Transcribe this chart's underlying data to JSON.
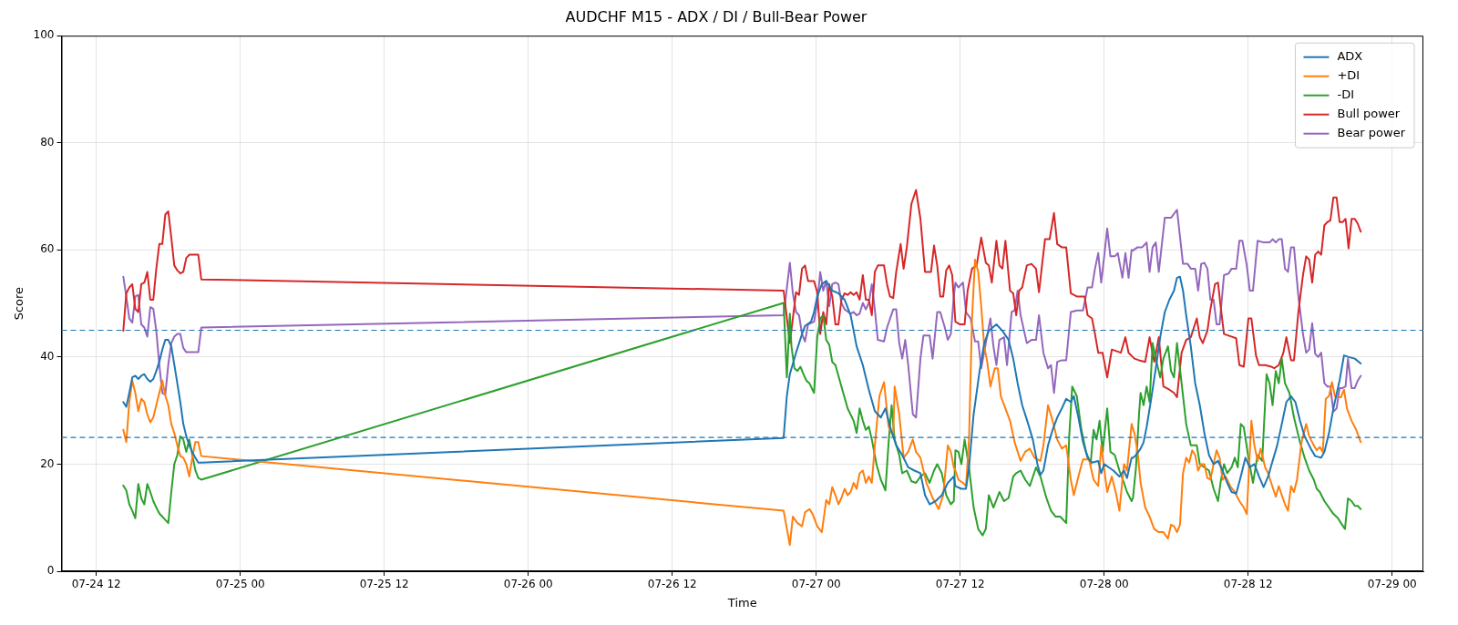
{
  "chart_data": {
    "type": "line",
    "title": "AUDCHF M15 - ADX / DI / Bull-Bear Power",
    "xlabel": "Time",
    "ylabel": "Score",
    "xlim": [
      "--07-24T09:06",
      "--07-29T02:36"
    ],
    "xticks": [
      {
        "value": "--07-24T12:00",
        "label": "07-24 12"
      },
      {
        "value": "--07-25T00:00",
        "label": "07-25 00"
      },
      {
        "value": "--07-25T12:00",
        "label": "07-25 12"
      },
      {
        "value": "--07-26T00:00",
        "label": "07-26 00"
      },
      {
        "value": "--07-26T12:00",
        "label": "07-26 12"
      },
      {
        "value": "--07-27T00:00",
        "label": "07-27 00"
      },
      {
        "value": "--07-27T12:00",
        "label": "07-27 12"
      },
      {
        "value": "--07-28T00:00",
        "label": "07-28 00"
      },
      {
        "value": "--07-28T12:00",
        "label": "07-28 12"
      },
      {
        "value": "--07-29T00:00",
        "label": "07-29 00"
      }
    ],
    "ylim": [
      0,
      100
    ],
    "yticks": [
      0,
      20,
      40,
      60,
      80,
      100
    ],
    "grid": true,
    "legend": "top right",
    "ref_lines": [
      {
        "axis": "y",
        "value": 45,
        "color": "#1f77b4",
        "line_style": "dashed"
      },
      {
        "axis": "y",
        "value": 25,
        "color": "#1f77b4",
        "line_style": "dashed"
      }
    ],
    "series": [
      {
        "name": "ADX",
        "color": "#1f77b4",
        "x": [
          "--07-24T14:15",
          "--07-24T14:30",
          "--07-24T14:45",
          "--07-24T15:00",
          "--07-24T15:15",
          "--07-24T15:30",
          "--07-24T15:45",
          "--07-24T16:00",
          "--07-24T16:15",
          "--07-24T16:30",
          "--07-24T16:45",
          "--07-24T17:00",
          "--07-24T17:15",
          "--07-24T17:30",
          "--07-24T17:45",
          "--07-24T18:00",
          "--07-24T18:15",
          "--07-24T18:30",
          "--07-24T18:45",
          "--07-24T19:00",
          "--07-24T19:15",
          "--07-24T19:30",
          "--07-24T19:45",
          "--07-24T20:00",
          "--07-24T20:15",
          "--07-24T20:30",
          "--07-24T20:45",
          "--07-26T21:17",
          "--07-26T21:33",
          "--07-26T21:48",
          "--07-26T22:19",
          "--07-26T22:49",
          "--07-26T23:04",
          "--07-26T23:34",
          "--07-26T23:49",
          "--07-27T00:05",
          "--07-27T00:28",
          "--07-27T00:50",
          "--07-27T01:20",
          "--07-27T01:51",
          "--07-27T02:22",
          "--07-27T02:52",
          "--07-27T03:22",
          "--07-27T03:53",
          "--07-27T04:23",
          "--07-27T04:53",
          "--07-27T05:23",
          "--07-27T05:46",
          "--07-27T06:09",
          "--07-27T06:40",
          "--07-27T07:10",
          "--07-27T07:40",
          "--07-27T08:11",
          "--07-27T08:41",
          "--07-27T09:04",
          "--07-27T09:27",
          "--07-27T09:57",
          "--07-27T10:28",
          "--07-27T10:58",
          "--07-27T11:28",
          "--07-27T11:36",
          "--07-27T12:06",
          "--07-27T12:29",
          "--07-27T12:44",
          "--07-27T13:07",
          "--07-27T13:37",
          "--07-27T14:00",
          "--07-27T14:23",
          "--07-27T15:01",
          "--07-27T15:31",
          "--07-27T16:02",
          "--07-27T16:25",
          "--07-27T16:47",
          "--07-27T17:10",
          "--07-27T17:40",
          "--07-27T18:03",
          "--07-27T18:26",
          "--07-27T18:41",
          "--07-27T18:56",
          "--07-27T19:19",
          "--07-27T19:42",
          "--07-27T20:05",
          "--07-27T20:28",
          "--07-27T20:50",
          "--07-27T21:13",
          "--07-27T21:28",
          "--07-27T21:51",
          "--07-27T22:14",
          "--07-27T22:37",
          "--07-27T22:59",
          "--07-27T23:30",
          "--07-27T23:45",
          "--07-28T00:00",
          "--07-28T00:23",
          "--07-28T00:46",
          "--07-28T01:16",
          "--07-28T01:39",
          "--07-28T01:54",
          "--07-28T02:17",
          "--07-28T02:24",
          "--07-28T02:39",
          "--07-28T03:02",
          "--07-28T03:17",
          "--07-28T03:32",
          "--07-28T03:55",
          "--07-28T04:18",
          "--07-28T04:40",
          "--07-28T05:03",
          "--07-28T05:26",
          "--07-28T05:49",
          "--07-28T06:04",
          "--07-28T06:19",
          "--07-28T06:34",
          "--07-28T06:50",
          "--07-28T07:13",
          "--07-28T07:35",
          "--07-28T07:58",
          "--07-28T08:21",
          "--07-28T08:44",
          "--07-28T09:07",
          "--07-28T09:29",
          "--07-28T09:52",
          "--07-28T10:15",
          "--07-28T10:37",
          "--07-28T11:00",
          "--07-28T11:23",
          "--07-28T11:46",
          "--07-28T12:08",
          "--07-28T12:31",
          "--07-28T12:54",
          "--07-28T13:17",
          "--07-28T13:40",
          "--07-28T14:02",
          "--07-28T14:25",
          "--07-28T14:48",
          "--07-28T15:11",
          "--07-28T15:34",
          "--07-28T15:56",
          "--07-28T16:19",
          "--07-28T16:42",
          "--07-28T17:05",
          "--07-28T17:13",
          "--07-28T17:35",
          "--07-28T18:05",
          "--07-28T18:21",
          "--07-28T18:44",
          "--07-28T19:06",
          "--07-28T19:37",
          "--07-28T19:59",
          "--07-28T20:22",
          "--07-28T20:53",
          "--07-28T21:23"
        ],
        "values": [
          31.6,
          30.7,
          33.3,
          36.2,
          36.5,
          35.9,
          36.5,
          36.8,
          35.9,
          35.4,
          35.9,
          37.4,
          39.1,
          41.4,
          43.2,
          43.2,
          42.0,
          38.6,
          35.1,
          31.6,
          27.5,
          25.2,
          23.5,
          22.3,
          21.2,
          20.3,
          20.3,
          24.9,
          32.7,
          36.8,
          40.8,
          44.3,
          45.8,
          46.6,
          48.4,
          51.3,
          53.6,
          54.2,
          52.4,
          51.9,
          50.7,
          47.8,
          42.0,
          38.5,
          33.9,
          29.9,
          28.7,
          30.4,
          27.0,
          23.5,
          21.7,
          19.4,
          18.8,
          18.3,
          14.2,
          12.5,
          13.1,
          14.2,
          16.5,
          17.7,
          15.9,
          15.4,
          15.4,
          19.4,
          29.3,
          37.4,
          42.6,
          44.9,
          46.1,
          44.9,
          43.2,
          39.7,
          35.1,
          31.0,
          27.5,
          24.6,
          20.0,
          18.0,
          18.8,
          23.5,
          26.4,
          28.7,
          30.4,
          32.2,
          31.6,
          32.7,
          28.7,
          24.1,
          21.2,
          20.3,
          20.6,
          18.3,
          20.0,
          19.4,
          18.8,
          17.7,
          18.8,
          17.4,
          21.2,
          21.2,
          21.7,
          22.9,
          24.1,
          26.9,
          32.2,
          37.9,
          43.7,
          48.4,
          50.7,
          52.4,
          54.8,
          55.0,
          52.4,
          47.8,
          42.0,
          35.1,
          31.0,
          25.8,
          21.7,
          20.0,
          20.6,
          18.8,
          16.5,
          14.8,
          14.5,
          17.7,
          21.2,
          19.4,
          20.0,
          17.7,
          15.7,
          17.7,
          20.6,
          23.5,
          27.5,
          31.6,
          32.7,
          31.6,
          28.1,
          25.2,
          23.5,
          22.9,
          21.5,
          21.2,
          22.3,
          25.8,
          30.4,
          35.6,
          40.3,
          40.0,
          39.7,
          38.8
        ]
      },
      {
        "name": "+DI",
        "color": "#ff7f0e",
        "x": [
          "--07-24T14:15",
          "--07-24T14:30",
          "--07-24T14:45",
          "--07-24T15:00",
          "--07-24T15:15",
          "--07-24T15:30",
          "--07-24T15:45",
          "--07-24T16:00",
          "--07-24T16:15",
          "--07-24T16:30",
          "--07-24T16:45",
          "--07-24T17:00",
          "--07-24T17:15",
          "--07-24T17:30",
          "--07-24T17:45",
          "--07-24T18:00",
          "--07-24T18:15",
          "--07-24T18:30",
          "--07-24T18:45",
          "--07-24T19:00",
          "--07-24T19:15",
          "--07-24T19:30",
          "--07-24T19:45",
          "--07-24T20:00",
          "--07-24T20:15",
          "--07-24T20:30",
          "--07-24T20:45",
          "--07-26T21:17",
          "--07-26T21:48",
          "--07-26T22:03",
          "--07-26T22:26",
          "--07-26T22:49",
          "--07-26T23:04",
          "--07-26T23:26",
          "--07-26T23:42",
          "--07-27T00:05",
          "--07-27T00:28",
          "--07-27T00:50",
          "--07-27T01:05",
          "--07-27T01:20",
          "--07-27T01:36",
          "--07-27T01:51",
          "--07-27T02:06",
          "--07-27T02:22",
          "--07-27T02:37",
          "--07-27T02:52",
          "--07-27T03:07",
          "--07-27T03:22",
          "--07-27T03:37",
          "--07-27T03:53",
          "--07-27T04:08",
          "--07-27T04:23",
          "--07-27T04:38",
          "--07-27T04:53",
          "--07-27T05:16",
          "--07-27T05:39",
          "--07-27T06:02",
          "--07-27T06:25",
          "--07-27T06:32",
          "--07-27T06:55",
          "--07-27T07:17",
          "--07-27T07:40",
          "--07-27T08:03",
          "--07-27T08:19",
          "--07-27T08:41",
          "--07-27T09:11",
          "--07-27T09:42",
          "--07-27T10:12",
          "--07-27T10:35",
          "--07-27T10:58",
          "--07-27T11:13",
          "--07-27T11:28",
          "--07-27T11:36",
          "--07-27T11:51",
          "--07-27T12:14",
          "--07-27T12:29",
          "--07-27T12:44",
          "--07-27T12:59",
          "--07-27T13:14",
          "--07-27T13:30",
          "--07-27T13:45",
          "--07-27T14:00",
          "--07-27T14:15",
          "--07-27T14:31",
          "--07-27T14:53",
          "--07-27T15:08",
          "--07-27T15:23",
          "--07-27T15:46",
          "--07-27T16:09",
          "--07-27T16:32",
          "--07-27T17:02",
          "--07-27T17:25",
          "--07-27T17:48",
          "--07-27T18:11",
          "--07-27T18:41",
          "--07-27T18:56",
          "--07-27T19:19",
          "--07-27T19:42",
          "--07-27T20:05",
          "--07-27T20:28",
          "--07-27T20:50",
          "--07-27T21:13",
          "--07-27T21:28",
          "--07-27T21:51",
          "--07-27T22:14",
          "--07-27T22:44",
          "--07-27T23:07",
          "--07-27T23:30",
          "--07-27T23:45",
          "--07-28T00:15",
          "--07-28T00:38",
          "--07-28T01:01",
          "--07-28T01:16",
          "--07-28T01:39",
          "--07-28T01:54",
          "--07-28T02:17",
          "--07-28T02:31",
          "--07-28T02:47",
          "--07-28T03:02",
          "--07-28T03:25",
          "--07-28T03:47",
          "--07-28T04:10",
          "--07-28T04:33",
          "--07-28T04:56",
          "--07-28T05:19",
          "--07-28T05:34",
          "--07-28T05:49",
          "--07-28T06:04",
          "--07-28T06:19",
          "--07-28T06:34",
          "--07-28T06:50",
          "--07-28T07:05",
          "--07-28T07:20",
          "--07-28T07:35",
          "--07-28T07:50",
          "--07-28T08:05",
          "--07-28T08:21",
          "--07-28T08:36",
          "--07-28T08:51",
          "--07-28T09:07",
          "--07-28T09:22",
          "--07-28T09:37",
          "--07-28T09:52",
          "--07-28T10:07",
          "--07-28T10:30",
          "--07-28T10:53",
          "--07-28T11:16",
          "--07-28T11:38",
          "--07-28T11:53",
          "--07-28T12:16",
          "--07-28T12:31",
          "--07-28T12:47",
          "--07-28T13:02",
          "--07-28T13:25",
          "--07-28T13:40",
          "--07-28T13:55",
          "--07-28T14:18",
          "--07-28T14:33",
          "--07-28T14:48",
          "--07-28T15:04",
          "--07-28T15:19",
          "--07-28T15:34",
          "--07-28T15:49",
          "--07-28T16:04",
          "--07-28T16:27",
          "--07-28T16:50",
          "--07-28T17:05",
          "--07-28T17:28",
          "--07-28T17:43",
          "--07-28T17:58",
          "--07-28T18:13",
          "--07-28T18:28",
          "--07-28T18:44",
          "--07-28T18:59",
          "--07-28T19:14",
          "--07-28T19:29",
          "--07-28T19:44",
          "--07-28T19:59",
          "--07-28T20:14",
          "--07-28T20:37",
          "--07-28T21:00",
          "--07-28T21:23"
        ],
        "values": [
          26.4,
          24.1,
          31.6,
          35.6,
          33.3,
          29.9,
          32.2,
          31.6,
          29.3,
          27.8,
          28.7,
          31.0,
          33.3,
          35.6,
          32.8,
          31.0,
          27.5,
          25.8,
          23.5,
          21.5,
          21.2,
          20.0,
          17.7,
          21.2,
          24.1,
          24.1,
          21.5,
          11.3,
          4.9,
          10.2,
          9.0,
          8.4,
          11.0,
          11.6,
          10.7,
          8.4,
          7.3,
          13.3,
          12.5,
          15.7,
          14.2,
          12.5,
          13.7,
          15.4,
          14.2,
          14.8,
          16.5,
          15.4,
          18.3,
          18.8,
          16.5,
          17.7,
          16.5,
          23.5,
          32.7,
          35.3,
          27.0,
          25.2,
          34.5,
          29.3,
          21.2,
          22.3,
          24.6,
          22.3,
          21.2,
          16.5,
          13.7,
          11.6,
          14.2,
          23.5,
          22.3,
          19.4,
          18.8,
          17.1,
          16.5,
          15.9,
          24.6,
          47.2,
          58.2,
          55.9,
          49.5,
          42.0,
          39.1,
          34.5,
          37.9,
          37.9,
          32.7,
          30.4,
          28.1,
          24.1,
          20.6,
          22.3,
          22.9,
          21.2,
          20.6,
          23.5,
          31.0,
          28.1,
          24.6,
          22.9,
          23.5,
          17.1,
          14.2,
          17.7,
          20.9,
          20.9,
          17.1,
          15.9,
          23.5,
          14.8,
          17.7,
          14.2,
          11.3,
          20.0,
          18.8,
          27.5,
          25.8,
          22.3,
          16.5,
          11.9,
          10.2,
          7.9,
          7.3,
          7.3,
          6.1,
          8.7,
          8.4,
          7.3,
          8.7,
          18.3,
          21.2,
          20.3,
          22.6,
          21.7,
          18.8,
          20.0,
          20.0,
          17.4,
          17.1,
          20.0,
          22.6,
          21.2,
          17.1,
          17.7,
          15.9,
          14.8,
          13.1,
          11.9,
          10.7,
          28.1,
          23.5,
          20.6,
          22.9,
          19.4,
          18.3,
          16.5,
          13.9,
          15.9,
          14.2,
          12.5,
          11.3,
          15.9,
          14.8,
          17.1,
          24.1,
          27.5,
          25.2,
          23.5,
          22.6,
          23.2,
          22.3,
          32.2,
          32.7,
          35.3,
          32.7,
          32.5,
          32.5,
          33.9,
          30.4,
          28.1,
          26.4,
          24.1
        ]
      },
      {
        "name": "-DI",
        "color": "#2ca02c",
        "x": [
          "--07-24T14:15",
          "--07-24T14:30",
          "--07-24T14:45",
          "--07-24T15:00",
          "--07-24T15:15",
          "--07-24T15:30",
          "--07-24T15:45",
          "--07-24T16:00",
          "--07-24T16:15",
          "--07-24T16:30",
          "--07-24T16:45",
          "--07-24T17:00",
          "--07-24T17:15",
          "--07-24T17:30",
          "--07-24T17:45",
          "--07-24T18:00",
          "--07-24T18:15",
          "--07-24T18:30",
          "--07-24T18:45",
          "--07-24T19:00",
          "--07-24T19:15",
          "--07-24T19:30",
          "--07-24T19:45",
          "--07-24T20:00",
          "--07-24T20:15",
          "--07-24T20:30",
          "--07-24T20:45",
          "--07-26T21:17",
          "--07-26T21:33",
          "--07-26T21:48",
          "--07-26T21:56",
          "--07-26T22:11",
          "--07-26T22:26",
          "--07-26T22:41",
          "--07-26T22:56",
          "--07-26T23:11",
          "--07-26T23:26",
          "--07-26T23:49",
          "--07-27T00:05",
          "--07-27T00:20",
          "--07-27T00:35",
          "--07-27T00:50",
          "--07-27T01:05",
          "--07-27T01:20",
          "--07-27T01:36",
          "--07-27T02:06",
          "--07-27T02:37",
          "--07-27T03:07",
          "--07-27T03:22",
          "--07-27T03:37",
          "--07-27T03:53",
          "--07-27T04:08",
          "--07-27T04:23",
          "--07-27T04:38",
          "--07-27T05:01",
          "--07-27T05:23",
          "--07-27T05:46",
          "--07-27T06:02",
          "--07-27T06:17",
          "--07-27T06:32",
          "--07-27T06:55",
          "--07-27T07:10",
          "--07-27T07:33",
          "--07-27T07:56",
          "--07-27T08:19",
          "--07-27T08:41",
          "--07-27T09:04",
          "--07-27T09:27",
          "--07-27T09:49",
          "--07-27T10:05",
          "--07-27T10:28",
          "--07-27T10:50",
          "--07-27T11:13",
          "--07-27T11:28",
          "--07-27T11:36",
          "--07-27T11:51",
          "--07-27T12:06",
          "--07-27T12:22",
          "--07-27T12:44",
          "--07-27T13:07",
          "--07-27T13:30",
          "--07-27T13:52",
          "--07-27T14:08",
          "--07-27T14:23",
          "--07-27T14:46",
          "--07-27T15:16",
          "--07-27T15:39",
          "--07-27T16:02",
          "--07-27T16:25",
          "--07-27T16:40",
          "--07-27T17:02",
          "--07-27T17:25",
          "--07-27T17:48",
          "--07-27T18:19",
          "--07-27T18:41",
          "--07-27T19:11",
          "--07-27T19:34",
          "--07-27T19:57",
          "--07-27T20:20",
          "--07-27T20:50",
          "--07-27T21:05",
          "--07-27T21:20",
          "--07-27T21:43",
          "--07-27T22:06",
          "--07-27T22:29",
          "--07-27T22:52",
          "--07-27T23:07",
          "--07-27T23:22",
          "--07-27T23:37",
          "--07-27T23:52",
          "--07-28T00:15",
          "--07-28T00:31",
          "--07-28T00:53",
          "--07-28T01:16",
          "--07-28T01:39",
          "--07-28T01:54",
          "--07-28T02:17",
          "--07-28T02:24",
          "--07-28T02:39",
          "--07-28T02:54",
          "--07-28T03:02",
          "--07-28T03:17",
          "--07-28T03:32",
          "--07-28T03:47",
          "--07-28T04:02",
          "--07-28T04:18",
          "--07-28T04:40",
          "--07-28T04:56",
          "--07-28T05:19",
          "--07-28T05:34",
          "--07-28T05:49",
          "--07-28T06:04",
          "--07-28T06:27",
          "--07-28T06:50",
          "--07-28T07:13",
          "--07-28T07:43",
          "--07-28T07:58",
          "--07-28T08:21",
          "--07-28T08:44",
          "--07-28T09:07",
          "--07-28T09:29",
          "--07-28T09:44",
          "--07-28T09:59",
          "--07-28T10:15",
          "--07-28T10:37",
          "--07-28T10:53",
          "--07-28T11:08",
          "--07-28T11:23",
          "--07-28T11:38",
          "--07-28T12:01",
          "--07-28T12:24",
          "--07-28T12:47",
          "--07-28T13:10",
          "--07-28T13:32",
          "--07-28T13:47",
          "--07-28T14:02",
          "--07-28T14:18",
          "--07-28T14:33",
          "--07-28T14:48",
          "--07-28T15:04",
          "--07-28T15:26",
          "--07-28T15:49",
          "--07-28T16:19",
          "--07-28T16:42",
          "--07-28T17:05",
          "--07-28T17:28",
          "--07-28T17:43",
          "--07-28T17:58",
          "--07-28T18:21",
          "--07-28T18:44",
          "--07-28T19:06",
          "--07-28T19:29",
          "--07-28T19:44",
          "--07-28T20:04",
          "--07-28T20:19",
          "--07-28T20:37",
          "--07-28T20:53",
          "--07-28T21:08",
          "--07-28T21:23"
        ],
        "values": [
          16.0,
          15.1,
          12.5,
          11.3,
          9.9,
          16.3,
          13.6,
          12.5,
          16.3,
          14.8,
          13.1,
          11.9,
          10.8,
          10.2,
          9.6,
          9.0,
          14.8,
          20.0,
          21.7,
          25.2,
          24.6,
          22.3,
          24.6,
          21.7,
          18.9,
          17.4,
          17.1,
          50.1,
          36.2,
          48.1,
          42.0,
          37.9,
          37.4,
          38.2,
          36.8,
          35.6,
          35.1,
          33.3,
          43.7,
          47.2,
          47.8,
          43.2,
          42.3,
          39.1,
          38.5,
          34.5,
          30.4,
          28.1,
          25.8,
          30.4,
          28.1,
          26.4,
          27.0,
          24.6,
          20.0,
          17.1,
          15.1,
          24.1,
          31.0,
          24.6,
          21.7,
          18.3,
          18.8,
          16.8,
          16.5,
          17.7,
          18.3,
          16.5,
          18.8,
          20.0,
          18.3,
          14.2,
          12.5,
          13.1,
          22.6,
          22.3,
          20.0,
          24.6,
          19.4,
          11.9,
          7.9,
          6.7,
          7.9,
          14.2,
          11.9,
          14.8,
          13.1,
          13.7,
          17.7,
          18.3,
          18.8,
          17.1,
          15.9,
          19.4,
          17.7,
          13.7,
          11.3,
          10.2,
          10.2,
          9.0,
          25.2,
          34.5,
          32.7,
          26.4,
          22.3,
          20.0,
          26.4,
          24.6,
          28.1,
          22.3,
          30.4,
          22.3,
          21.7,
          18.8,
          16.5,
          14.8,
          13.1,
          13.7,
          19.4,
          29.3,
          33.3,
          31.0,
          34.5,
          31.6,
          42.6,
          39.7,
          36.2,
          39.7,
          42.0,
          37.4,
          36.2,
          42.6,
          35.1,
          27.5,
          23.5,
          23.5,
          20.0,
          19.4,
          18.8,
          15.4,
          13.1,
          17.1,
          20.0,
          18.3,
          19.4,
          21.2,
          19.4,
          27.5,
          26.9,
          21.2,
          16.5,
          21.7,
          20.6,
          36.8,
          35.1,
          31.0,
          37.4,
          35.1,
          39.7,
          35.1,
          33.3,
          28.7,
          24.1,
          21.2,
          18.8,
          17.1,
          15.4,
          14.8,
          13.1,
          11.9,
          10.7,
          9.9,
          9.0,
          7.9,
          13.6,
          13.1,
          12.2,
          12.2,
          11.6
        ]
      },
      {
        "name": "Bull power",
        "color": "#d62728",
        "x": [
          "--07-24T14:15",
          "--07-24T14:30",
          "--07-24T14:45",
          "--07-24T15:00",
          "--07-24T15:15",
          "--07-24T15:30",
          "--07-24T15:45",
          "--07-24T16:00",
          "--07-24T16:15",
          "--07-24T16:30",
          "--07-24T16:45",
          "--07-24T17:00",
          "--07-24T17:15",
          "--07-24T17:30",
          "--07-24T17:45",
          "--07-24T18:00",
          "--07-24T18:15",
          "--07-24T18:30",
          "--07-24T18:45",
          "--07-24T19:00",
          "--07-24T19:15",
          "--07-24T19:30",
          "--07-24T19:45",
          "--07-24T20:00",
          "--07-24T20:15",
          "--07-24T20:30",
          "--07-24T20:45",
          "--07-26T21:17",
          "--07-26T21:48",
          "--07-26T22:19",
          "--07-26T22:34",
          "--07-26T22:49",
          "--07-26T23:04",
          "--07-26T23:19",
          "--07-26T23:49",
          "--07-27T00:05",
          "--07-27T00:20",
          "--07-27T00:35",
          "--07-27T00:50",
          "--07-27T01:05",
          "--07-27T01:20",
          "--07-27T01:36",
          "--07-27T01:51",
          "--07-27T02:06",
          "--07-27T02:22",
          "--07-27T02:37",
          "--07-27T02:52",
          "--07-27T03:07",
          "--07-27T03:22",
          "--07-27T03:37",
          "--07-27T03:53",
          "--07-27T04:08",
          "--07-27T04:23",
          "--07-27T04:38",
          "--07-27T04:53",
          "--07-27T05:08",
          "--07-27T05:39",
          "--07-27T05:54",
          "--07-27T06:09",
          "--07-27T06:25",
          "--07-27T06:40",
          "--07-27T07:02",
          "--07-27T07:17",
          "--07-27T07:33",
          "--07-27T07:56",
          "--07-27T08:19",
          "--07-27T08:41",
          "--07-27T09:04",
          "--07-27T09:34",
          "--07-27T09:49",
          "--07-27T10:05",
          "--07-27T10:20",
          "--07-27T10:35",
          "--07-27T10:50",
          "--07-27T11:05",
          "--07-27T11:20",
          "--07-27T11:36",
          "--07-27T11:59",
          "--07-27T12:22",
          "--07-27T12:37",
          "--07-27T12:59",
          "--07-27T13:22",
          "--07-27T13:45",
          "--07-27T14:08",
          "--07-27T14:23",
          "--07-27T14:38",
          "--07-27T15:01",
          "--07-27T15:16",
          "--07-27T15:31",
          "--07-27T15:46",
          "--07-27T16:09",
          "--07-27T16:25",
          "--07-27T16:40",
          "--07-27T16:55",
          "--07-27T17:10",
          "--07-27T17:33",
          "--07-27T17:56",
          "--07-27T18:19",
          "--07-27T18:34",
          "--07-27T18:49",
          "--07-27T19:04",
          "--07-27T19:27",
          "--07-27T19:49",
          "--07-27T20:05",
          "--07-27T20:28",
          "--07-27T20:50",
          "--07-27T21:13",
          "--07-27T21:43",
          "--07-27T22:22",
          "--07-27T22:37",
          "--07-27T22:59",
          "--07-27T23:14",
          "--07-27T23:30",
          "--07-27T23:52",
          "--07-28T00:15",
          "--07-28T00:38",
          "--07-28T01:01",
          "--07-28T01:23",
          "--07-28T01:46",
          "--07-28T02:02",
          "--07-28T02:31",
          "--07-28T02:54",
          "--07-28T03:25",
          "--07-28T03:47",
          "--07-28T04:10",
          "--07-28T04:33",
          "--07-28T04:56",
          "--07-28T05:26",
          "--07-28T05:49",
          "--07-28T06:04",
          "--07-28T06:27",
          "--07-28T06:50",
          "--07-28T07:13",
          "--07-28T07:43",
          "--07-28T07:58",
          "--07-28T08:13",
          "--07-28T08:36",
          "--07-28T08:51",
          "--07-28T09:14",
          "--07-28T09:29",
          "--07-28T09:44",
          "--07-28T09:59",
          "--07-28T10:22",
          "--07-28T11:00",
          "--07-28T11:16",
          "--07-28T11:38",
          "--07-28T12:01",
          "--07-28T12:16",
          "--07-28T12:39",
          "--07-28T12:54",
          "--07-28T13:25",
          "--07-28T13:55",
          "--07-28T14:10",
          "--07-28T14:33",
          "--07-28T14:56",
          "--07-28T15:11",
          "--07-28T15:34",
          "--07-28T15:49",
          "--07-28T16:11",
          "--07-28T16:34",
          "--07-28T16:50",
          "--07-28T17:05",
          "--07-28T17:20",
          "--07-28T17:35",
          "--07-28T17:50",
          "--07-28T18:05",
          "--07-28T18:21",
          "--07-28T18:36",
          "--07-28T18:51",
          "--07-28T19:06",
          "--07-28T19:22",
          "--07-28T19:37",
          "--07-28T19:52",
          "--07-28T20:07",
          "--07-28T20:22",
          "--07-28T20:37",
          "--07-28T20:53",
          "--07-28T21:08",
          "--07-28T21:23"
        ],
        "values": [
          44.9,
          51.9,
          53.0,
          53.6,
          49.0,
          48.4,
          53.6,
          53.9,
          55.9,
          50.7,
          50.7,
          56.5,
          61.1,
          61.1,
          66.6,
          67.2,
          62.3,
          57.1,
          56.2,
          55.6,
          55.9,
          58.5,
          59.1,
          59.1,
          59.1,
          59.1,
          54.5,
          52.4,
          42.6,
          52.1,
          51.6,
          56.5,
          57.1,
          54.2,
          54.2,
          52.1,
          44.3,
          48.4,
          46.1,
          53.6,
          51.3,
          46.1,
          46.1,
          50.7,
          51.9,
          51.6,
          52.1,
          51.6,
          52.1,
          50.7,
          55.3,
          50.7,
          50.7,
          47.8,
          55.9,
          57.1,
          57.1,
          53.6,
          51.3,
          51.0,
          55.9,
          61.1,
          56.5,
          60.5,
          68.6,
          71.2,
          65.8,
          55.9,
          55.9,
          60.8,
          57.1,
          51.3,
          51.3,
          56.2,
          57.1,
          55.3,
          46.6,
          46.1,
          46.1,
          52.4,
          56.5,
          57.1,
          62.3,
          57.6,
          57.1,
          53.9,
          61.7,
          57.1,
          56.5,
          61.7,
          52.4,
          51.9,
          47.8,
          52.4,
          53.0,
          57.1,
          57.4,
          56.5,
          52.1,
          57.1,
          62.0,
          62.0,
          66.9,
          61.1,
          60.5,
          60.5,
          51.9,
          51.3,
          51.3,
          47.8,
          47.2,
          44.3,
          40.8,
          40.8,
          36.2,
          41.4,
          41.1,
          40.8,
          43.7,
          40.8,
          39.7,
          39.4,
          39.1,
          43.7,
          39.1,
          43.7,
          34.5,
          33.9,
          33.3,
          32.5,
          40.8,
          43.2,
          43.7,
          47.2,
          43.7,
          42.6,
          44.9,
          48.9,
          53.6,
          53.9,
          48.9,
          44.3,
          44.0,
          43.5,
          38.5,
          38.2,
          47.2,
          47.2,
          40.3,
          38.5,
          38.5,
          38.2,
          37.9,
          38.5,
          40.8,
          43.7,
          39.4,
          39.4,
          48.4,
          55.3,
          58.8,
          58.2,
          53.9,
          59.1,
          59.7,
          59.1,
          64.6,
          65.2,
          65.5,
          69.8,
          69.8,
          65.2,
          65.2,
          65.8,
          60.3,
          65.8,
          65.8,
          64.9,
          63.4
        ]
      },
      {
        "name": "Bear power",
        "color": "#9467bd",
        "x": [
          "--07-24T14:15",
          "--07-24T14:30",
          "--07-24T14:45",
          "--07-24T15:00",
          "--07-24T15:15",
          "--07-24T15:30",
          "--07-24T15:45",
          "--07-24T16:00",
          "--07-24T16:15",
          "--07-24T16:30",
          "--07-24T16:45",
          "--07-24T17:00",
          "--07-24T17:15",
          "--07-24T17:30",
          "--07-24T17:45",
          "--07-24T18:00",
          "--07-24T18:15",
          "--07-24T18:30",
          "--07-24T18:45",
          "--07-24T19:00",
          "--07-24T19:15",
          "--07-24T19:30",
          "--07-24T19:45",
          "--07-24T20:00",
          "--07-24T20:15",
          "--07-24T20:30",
          "--07-24T20:45",
          "--07-26T21:17",
          "--07-26T21:48",
          "--07-26T22:03",
          "--07-26T22:19",
          "--07-26T22:34",
          "--07-26T22:49",
          "--07-26T23:04",
          "--07-26T23:19",
          "--07-26T23:49",
          "--07-27T00:05",
          "--07-27T00:20",
          "--07-27T00:35",
          "--07-27T00:50",
          "--07-27T01:05",
          "--07-27T01:20",
          "--07-27T01:36",
          "--07-27T01:51",
          "--07-27T02:06",
          "--07-27T02:22",
          "--07-27T02:52",
          "--07-27T03:07",
          "--07-27T03:22",
          "--07-27T03:37",
          "--07-27T03:53",
          "--07-27T04:08",
          "--07-27T04:23",
          "--07-27T04:38",
          "--07-27T04:53",
          "--07-27T05:08",
          "--07-27T05:39",
          "--07-27T05:54",
          "--07-27T06:25",
          "--07-27T06:40",
          "--07-27T06:55",
          "--07-27T07:10",
          "--07-27T07:25",
          "--07-27T07:40",
          "--07-27T08:03",
          "--07-27T08:19",
          "--07-27T08:41",
          "--07-27T08:56",
          "--07-27T09:27",
          "--07-27T09:42",
          "--07-27T10:05",
          "--07-27T10:20",
          "--07-27T10:43",
          "--07-27T10:58",
          "--07-27T11:13",
          "--07-27T11:28",
          "--07-27T11:36",
          "--07-27T11:51",
          "--07-27T12:14",
          "--07-27T12:29",
          "--07-27T12:52",
          "--07-27T13:14",
          "--07-27T13:30",
          "--07-27T13:45",
          "--07-27T14:08",
          "--07-27T14:31",
          "--07-27T14:46",
          "--07-27T15:01",
          "--07-27T15:16",
          "--07-27T15:39",
          "--07-27T15:54",
          "--07-27T16:17",
          "--07-27T16:32",
          "--07-27T16:47",
          "--07-27T17:02",
          "--07-27T17:33",
          "--07-27T17:56",
          "--07-27T18:19",
          "--07-27T18:34",
          "--07-27T18:56",
          "--07-27T19:19",
          "--07-27T19:34",
          "--07-27T19:49",
          "--07-27T20:05",
          "--07-27T20:28",
          "--07-27T20:50",
          "--07-27T21:13",
          "--07-27T21:43",
          "--07-27T22:14",
          "--07-27T22:37",
          "--07-27T22:59",
          "--07-27T23:14",
          "--07-27T23:30",
          "--07-27T23:45",
          "--07-28T00:00",
          "--07-28T00:15",
          "--07-28T00:31",
          "--07-28T00:53",
          "--07-28T01:08",
          "--07-28T01:31",
          "--07-28T01:46",
          "--07-28T02:02",
          "--07-28T02:17",
          "--07-28T02:24",
          "--07-28T02:47",
          "--07-28T03:10",
          "--07-28T03:32",
          "--07-28T03:47",
          "--07-28T04:02",
          "--07-28T04:18",
          "--07-28T04:33",
          "--07-28T05:03",
          "--07-28T05:34",
          "--07-28T06:04",
          "--07-28T06:34",
          "--07-28T06:57",
          "--07-28T07:13",
          "--07-28T07:35",
          "--07-28T07:50",
          "--07-28T08:05",
          "--07-28T08:21",
          "--07-28T08:36",
          "--07-28T08:51",
          "--07-28T09:07",
          "--07-28T09:22",
          "--07-28T09:37",
          "--07-28T09:59",
          "--07-28T10:22",
          "--07-28T10:37",
          "--07-28T11:00",
          "--07-28T11:16",
          "--07-28T11:31",
          "--07-28T11:53",
          "--07-28T12:08",
          "--07-28T12:24",
          "--07-28T12:47",
          "--07-28T13:17",
          "--07-28T13:47",
          "--07-28T14:02",
          "--07-28T14:18",
          "--07-28T14:33",
          "--07-28T14:48",
          "--07-28T15:04",
          "--07-28T15:19",
          "--07-28T15:34",
          "--07-28T15:49",
          "--07-28T16:11",
          "--07-28T16:34",
          "--07-28T16:50",
          "--07-28T17:05",
          "--07-28T17:20",
          "--07-28T17:35",
          "--07-28T17:50",
          "--07-28T18:05",
          "--07-28T18:21",
          "--07-28T18:36",
          "--07-28T18:51",
          "--07-28T19:06",
          "--07-28T19:22",
          "--07-28T19:37",
          "--07-28T19:52",
          "--07-28T20:07",
          "--07-28T20:19",
          "--07-28T20:37",
          "--07-28T20:53",
          "--07-28T21:08",
          "--07-28T21:23"
        ],
        "values": [
          55.0,
          51.3,
          47.2,
          46.4,
          51.3,
          51.6,
          46.1,
          45.5,
          43.8,
          49.3,
          49.0,
          44.9,
          38.6,
          33.3,
          33.0,
          38.6,
          42.6,
          43.8,
          44.3,
          44.3,
          41.7,
          40.9,
          40.9,
          40.9,
          40.9,
          40.9,
          45.5,
          47.8,
          57.6,
          51.9,
          48.4,
          47.8,
          44.3,
          42.9,
          46.1,
          46.6,
          50.1,
          55.9,
          52.4,
          54.2,
          49.5,
          53.6,
          53.9,
          53.6,
          50.1,
          48.9,
          48.1,
          48.4,
          47.8,
          48.1,
          50.1,
          48.9,
          50.1,
          53.6,
          48.9,
          43.2,
          42.9,
          45.5,
          48.9,
          48.9,
          42.6,
          39.7,
          43.2,
          38.5,
          29.3,
          28.7,
          39.7,
          44.0,
          44.0,
          39.7,
          48.4,
          48.4,
          45.5,
          43.2,
          44.3,
          51.3,
          53.9,
          53.0,
          53.9,
          48.4,
          47.2,
          42.9,
          42.9,
          37.9,
          42.6,
          47.2,
          42.0,
          38.5,
          43.2,
          43.7,
          38.5,
          48.4,
          48.7,
          52.4,
          47.8,
          42.6,
          43.2,
          43.2,
          47.8,
          40.8,
          37.9,
          38.5,
          33.3,
          39.1,
          39.4,
          39.4,
          48.4,
          48.7,
          48.7,
          53.0,
          53.0,
          56.5,
          59.4,
          53.9,
          58.8,
          64.0,
          58.8,
          58.8,
          59.4,
          54.8,
          59.4,
          54.8,
          60.0,
          59.9,
          60.5,
          60.5,
          61.4,
          55.9,
          60.5,
          61.4,
          55.9,
          66.0,
          66.0,
          67.5,
          57.4,
          57.4,
          56.5,
          56.5,
          52.4,
          57.4,
          57.6,
          56.5,
          50.7,
          50.7,
          46.1,
          46.1,
          55.3,
          55.6,
          56.5,
          56.5,
          61.7,
          61.7,
          57.1,
          52.4,
          52.4,
          61.7,
          61.4,
          61.4,
          62.0,
          61.4,
          62.0,
          62.0,
          56.5,
          55.9,
          60.5,
          60.5,
          51.3,
          44.3,
          40.8,
          41.4,
          46.3,
          40.6,
          40.0,
          40.8,
          35.1,
          34.5,
          34.5,
          29.8,
          30.4,
          34.2,
          34.2,
          34.5,
          39.7,
          34.2,
          34.2,
          35.6,
          36.5
        ]
      }
    ]
  }
}
